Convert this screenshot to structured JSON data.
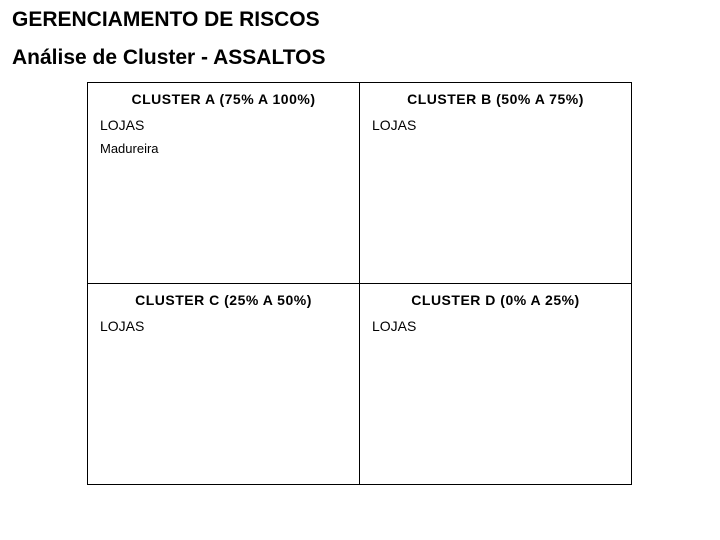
{
  "heading1": "GERENCIAMENTO DE RISCOS",
  "heading2": "Análise de Cluster - ASSALTOS",
  "grid": {
    "border_color": "#000000",
    "background": "#ffffff",
    "cells": [
      {
        "header": "CLUSTER  A (75% A 100%)",
        "subheading": "LOJAS",
        "items": [
          "Madureira"
        ]
      },
      {
        "header": "CLUSTER  B (50% A 75%)",
        "subheading": "LOJAS",
        "items": []
      },
      {
        "header": "CLUSTER  C (25% A 50%)",
        "subheading": "LOJAS",
        "items": []
      },
      {
        "header": "CLUSTER  D (0% A 25%)",
        "subheading": "LOJAS",
        "items": []
      }
    ]
  }
}
